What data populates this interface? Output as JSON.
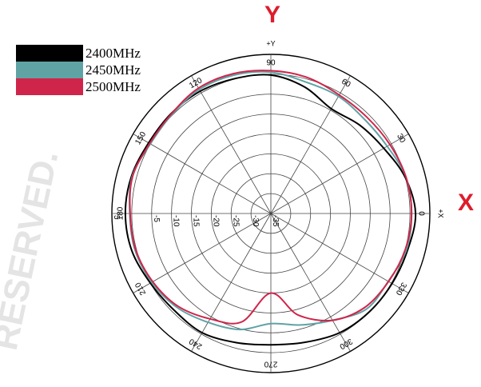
{
  "axis_letters": {
    "y": "Y",
    "x": "X",
    "color": "#dd1d2c"
  },
  "watermark": {
    "text": "RESERVED.",
    "color": "#e4e4e4"
  },
  "chart_data": {
    "type": "polar-line",
    "title": "",
    "angle_unit": "degrees",
    "radial_range": [
      -35,
      5
    ],
    "radial_ticks": [
      {
        "value": 5,
        "label": "5"
      },
      {
        "value": 0,
        "label": ""
      },
      {
        "value": -5,
        "label": "-5"
      },
      {
        "value": -10,
        "label": "-10"
      },
      {
        "value": -15,
        "label": "-15"
      },
      {
        "value": -20,
        "label": "-20"
      },
      {
        "value": -25,
        "label": "-25"
      },
      {
        "value": -30,
        "label": "-30"
      },
      {
        "value": -35,
        "label": "-35"
      }
    ],
    "angle_labels": [
      {
        "angle": 90,
        "label": "90"
      },
      {
        "angle": 60,
        "label": "60"
      },
      {
        "angle": 30,
        "label": "30"
      },
      {
        "angle": 0,
        "label": "0"
      },
      {
        "angle": 330,
        "label": "330"
      },
      {
        "angle": 300,
        "label": "300"
      },
      {
        "angle": 270,
        "label": "270"
      },
      {
        "angle": 240,
        "label": "240"
      },
      {
        "angle": 210,
        "label": "210"
      },
      {
        "angle": 180,
        "label": "180"
      },
      {
        "angle": 150,
        "label": "150"
      },
      {
        "angle": 120,
        "label": "120"
      }
    ],
    "axis_end_labels": [
      {
        "angle": 90,
        "label": "+Y"
      },
      {
        "angle": 0,
        "label": "+X"
      }
    ],
    "grid": true,
    "legend_position": "top-left",
    "series": [
      {
        "name": "2400MHz",
        "color": "#000000",
        "theta": [
          0,
          15,
          30,
          45,
          60,
          75,
          90,
          105,
          120,
          135,
          150,
          165,
          180,
          195,
          210,
          225,
          240,
          255,
          270,
          285,
          300,
          315,
          330,
          345
        ],
        "r": [
          1.4,
          0.0,
          -2.2,
          -3.5,
          -4.6,
          -2.1,
          -0.2,
          0.1,
          0.5,
          0.5,
          0.5,
          1.3,
          1.6,
          1.2,
          0.0,
          -0.6,
          -0.4,
          -1.4,
          -2.0,
          -1.5,
          -0.4,
          0.0,
          0.2,
          0.6
        ]
      },
      {
        "name": "2450MHz",
        "color": "#5fa3a5",
        "theta": [
          0,
          15,
          30,
          45,
          60,
          75,
          90,
          105,
          120,
          135,
          150,
          165,
          180,
          195,
          210,
          225,
          240,
          255,
          270,
          285,
          300,
          315,
          330,
          345
        ],
        "r": [
          0.4,
          0.2,
          -1.2,
          -1.6,
          -1.0,
          -0.8,
          0.5,
          1.0,
          1.0,
          0.2,
          0.0,
          1.1,
          0.5,
          0.4,
          -0.4,
          -1.6,
          -3.4,
          -4.8,
          -7.3,
          -6.0,
          -4.0,
          -1.0,
          -0.9,
          0.3
        ]
      },
      {
        "name": "2500MHz",
        "color": "#d0254a",
        "theta": [
          0,
          15,
          30,
          45,
          60,
          75,
          90,
          105,
          120,
          135,
          150,
          165,
          180,
          195,
          210,
          225,
          240,
          255,
          270,
          285,
          300,
          315,
          330,
          345
        ],
        "r": [
          0.4,
          0.2,
          -0.4,
          -0.8,
          -0.6,
          0.4,
          0.9,
          1.4,
          1.4,
          0.4,
          0.2,
          1.0,
          0.4,
          0.2,
          -0.7,
          -2.0,
          -4.4,
          -6.8,
          -15.0,
          -8.6,
          -4.0,
          -1.6,
          -0.8,
          0.0
        ]
      }
    ]
  }
}
